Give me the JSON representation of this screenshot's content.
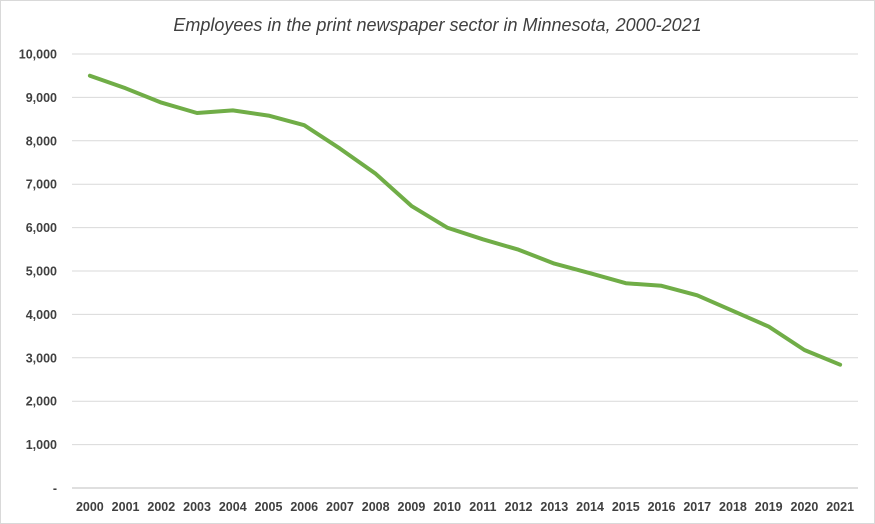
{
  "chart_data": {
    "type": "line",
    "title": "Employees in the print newspaper sector in Minnesota, 2000-2021",
    "xlabel": "",
    "ylabel": "",
    "categories": [
      "2000",
      "2001",
      "2002",
      "2003",
      "2004",
      "2005",
      "2006",
      "2007",
      "2008",
      "2009",
      "2010",
      "2011",
      "2012",
      "2013",
      "2014",
      "2015",
      "2016",
      "2017",
      "2018",
      "2019",
      "2020",
      "2021"
    ],
    "series": [
      {
        "values": [
          9500,
          9210,
          8880,
          8640,
          8700,
          8580,
          8360,
          7820,
          7240,
          6500,
          6000,
          5730,
          5490,
          5170,
          4950,
          4720,
          4660,
          4440,
          4080,
          3720,
          3180,
          2840
        ],
        "color": "#70ad47"
      }
    ],
    "ylim": [
      0,
      10000
    ],
    "yticks": [
      0,
      1000,
      2000,
      3000,
      4000,
      5000,
      6000,
      7000,
      8000,
      9000,
      10000
    ],
    "ytick_labels": [
      "-",
      "1,000",
      "2,000",
      "3,000",
      "4,000",
      "5,000",
      "6,000",
      "7,000",
      "8,000",
      "9,000",
      "10,000"
    ],
    "grid": true,
    "legend": "none"
  }
}
